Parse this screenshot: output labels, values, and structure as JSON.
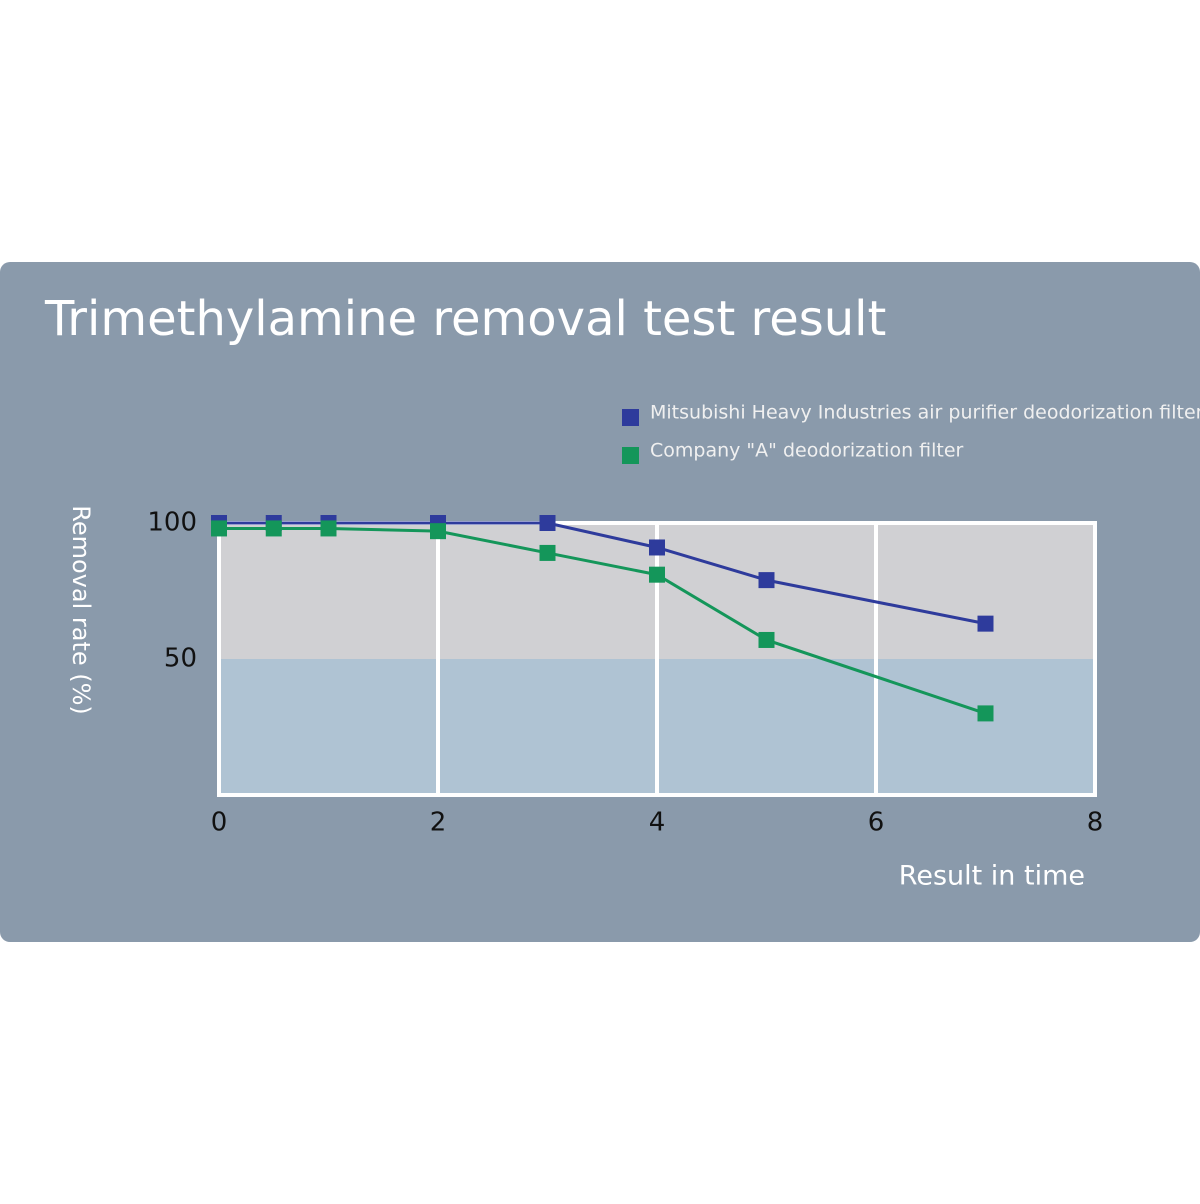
{
  "chart_data": {
    "type": "line",
    "title": "Trimethylamine removal test result",
    "x_label": "Result in time",
    "y_label": "Removal rate (%)",
    "series": [
      {
        "name": "Mitsubishi Heavy Industries air purifier deodorization filter",
        "color": "#2e3b9c",
        "x": [
          0,
          0.5,
          1,
          2,
          3,
          4,
          5,
          7
        ],
        "values": [
          100,
          100,
          100,
          100,
          100,
          91,
          79,
          63
        ]
      },
      {
        "name": "Company \"A\" deodorization filter",
        "color": "#14965a",
        "x": [
          0,
          0.5,
          1,
          2,
          3,
          4,
          5,
          7
        ],
        "values": [
          98,
          98,
          98,
          97,
          89,
          81,
          57,
          30
        ]
      }
    ],
    "xlim": [
      0,
      8
    ],
    "xticks": [
      0,
      2,
      4,
      6,
      8
    ],
    "ylim": [
      0,
      100
    ],
    "yticks": [
      50,
      100
    ],
    "grid": true,
    "legend": "top-right"
  }
}
